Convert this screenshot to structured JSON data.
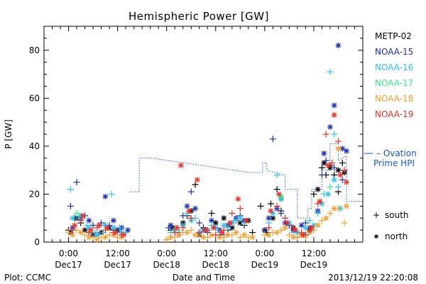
{
  "chart_data": {
    "type": "scatter",
    "title": "Hemispheric Power [GW]",
    "ylabel": "P [GW]",
    "xlabel": "Date and Time",
    "ylim": [
      0,
      90
    ],
    "yticks": [
      0,
      20,
      40,
      60,
      80
    ],
    "xlim_hours": [
      -6,
      72
    ],
    "x_ticks": [
      {
        "hour": 0,
        "time": "0:00",
        "date": "Dec17"
      },
      {
        "hour": 12,
        "time": "12:00",
        "date": "Dec17"
      },
      {
        "hour": 24,
        "time": "0:00",
        "date": "Dec18"
      },
      {
        "hour": 36,
        "time": "12:00",
        "date": "Dec18"
      },
      {
        "hour": 48,
        "time": "0:00",
        "date": "Dec19"
      },
      {
        "hour": 60,
        "time": "12:00",
        "date": "Dec19"
      }
    ],
    "plot_credit": "Plot: CCMC",
    "timestamp": "2013/12/19 22:20:08",
    "marker_legend": [
      {
        "marker": "+",
        "label": "south"
      },
      {
        "marker": "*",
        "label": "north"
      }
    ],
    "ovation_label_1": "– Ovation",
    "ovation_label_2": "Prime HPI",
    "ovation_color": "#1a56c4",
    "ovation_series": [
      [
        15,
        21
      ],
      [
        16,
        21
      ],
      [
        17.3,
        21
      ],
      [
        17.3,
        35
      ],
      [
        20.5,
        35
      ],
      [
        44.5,
        29
      ],
      [
        47.5,
        29
      ],
      [
        47.5,
        33
      ],
      [
        48.5,
        33
      ],
      [
        48.5,
        30
      ],
      [
        52.5,
        28
      ],
      [
        53,
        28
      ],
      [
        53,
        22
      ],
      [
        56,
        22
      ],
      [
        56,
        10
      ],
      [
        58.5,
        10
      ],
      [
        58.5,
        14
      ],
      [
        59.5,
        14
      ],
      [
        59.5,
        22
      ],
      [
        62,
        22
      ],
      [
        62,
        30
      ],
      [
        64,
        30
      ],
      [
        64,
        41
      ],
      [
        66,
        41
      ],
      [
        66,
        34
      ],
      [
        68,
        36
      ],
      [
        68,
        17
      ],
      [
        72,
        17
      ]
    ],
    "series": [
      {
        "name": "METP-02",
        "color": "#000000",
        "south": [
          [
            0,
            5
          ],
          [
            1.5,
            10
          ],
          [
            3,
            8
          ],
          [
            5,
            4
          ],
          [
            7,
            3
          ],
          [
            9,
            7
          ],
          [
            11,
            5
          ],
          [
            13,
            4
          ],
          [
            25,
            5
          ],
          [
            27,
            4
          ],
          [
            29,
            11
          ],
          [
            31,
            24
          ],
          [
            33,
            6
          ],
          [
            35,
            12
          ],
          [
            37,
            3
          ],
          [
            39,
            5
          ],
          [
            41,
            9
          ],
          [
            43,
            7
          ],
          [
            45,
            4
          ],
          [
            47,
            15
          ],
          [
            48.5,
            4
          ],
          [
            49.5,
            16
          ],
          [
            51,
            22
          ],
          [
            52,
            13
          ],
          [
            54,
            7
          ],
          [
            56,
            2
          ],
          [
            58,
            3
          ],
          [
            60,
            20
          ],
          [
            62,
            31
          ],
          [
            63,
            28
          ],
          [
            64,
            32
          ],
          [
            65,
            28
          ],
          [
            66,
            21
          ],
          [
            67,
            33
          ]
        ],
        "north": [
          [
            0.5,
            4
          ],
          [
            2,
            10
          ],
          [
            4,
            5
          ],
          [
            6,
            3
          ],
          [
            8,
            4
          ],
          [
            10,
            6
          ],
          [
            12,
            5
          ],
          [
            25.5,
            6
          ],
          [
            28,
            8
          ],
          [
            30,
            13
          ],
          [
            32,
            3
          ],
          [
            34,
            5
          ],
          [
            36,
            8
          ],
          [
            38,
            10
          ],
          [
            40,
            6
          ],
          [
            42,
            8
          ],
          [
            44,
            9
          ],
          [
            48,
            5
          ],
          [
            50,
            10
          ],
          [
            52,
            18
          ],
          [
            55,
            6
          ],
          [
            57,
            3
          ],
          [
            59,
            5
          ],
          [
            61,
            22
          ],
          [
            62.5,
            33
          ],
          [
            64,
            31
          ],
          [
            66,
            30
          ],
          [
            67.5,
            29
          ]
        ]
      },
      {
        "name": "NOAA-15",
        "color": "#1c2fb0",
        "south": [
          [
            0.5,
            15
          ],
          [
            2,
            25
          ],
          [
            4,
            11
          ],
          [
            6,
            7
          ],
          [
            8,
            8
          ],
          [
            10,
            7
          ],
          [
            12,
            5
          ],
          [
            14,
            4
          ],
          [
            24.5,
            6
          ],
          [
            26,
            4
          ],
          [
            28,
            11
          ],
          [
            30,
            21
          ],
          [
            32,
            8
          ],
          [
            34,
            4
          ],
          [
            36,
            6
          ],
          [
            38,
            3
          ],
          [
            40,
            8
          ],
          [
            42,
            11
          ],
          [
            48,
            5
          ],
          [
            50,
            43
          ],
          [
            52,
            12
          ],
          [
            54,
            7
          ],
          [
            56,
            4
          ],
          [
            58,
            8
          ],
          [
            60,
            5
          ],
          [
            62,
            28
          ],
          [
            63,
            34
          ],
          [
            65,
            31
          ],
          [
            67,
            26
          ]
        ],
        "north": [
          [
            1,
            6
          ],
          [
            3,
            10
          ],
          [
            5,
            9
          ],
          [
            7,
            3
          ],
          [
            9,
            19
          ],
          [
            11,
            9
          ],
          [
            13,
            6
          ],
          [
            14.5,
            5
          ],
          [
            25,
            7
          ],
          [
            27,
            3
          ],
          [
            29,
            15
          ],
          [
            31,
            14
          ],
          [
            33,
            5
          ],
          [
            35,
            9
          ],
          [
            37,
            5
          ],
          [
            39,
            7
          ],
          [
            41,
            10
          ],
          [
            43,
            9
          ],
          [
            49,
            10
          ],
          [
            51,
            14
          ],
          [
            53,
            8
          ],
          [
            55,
            5
          ],
          [
            57,
            7
          ],
          [
            59,
            6
          ],
          [
            61,
            13
          ],
          [
            62.5,
            37
          ],
          [
            64,
            48
          ],
          [
            65,
            57
          ],
          [
            66,
            82
          ],
          [
            67,
            39
          ],
          [
            68,
            38
          ]
        ]
      },
      {
        "name": "NOAA-16",
        "color": "#33c1ea",
        "south": [
          [
            0.5,
            22
          ],
          [
            2.5,
            10
          ],
          [
            4.5,
            7
          ],
          [
            6.5,
            4
          ],
          [
            8.5,
            4
          ],
          [
            10.5,
            20
          ],
          [
            12.5,
            6
          ],
          [
            14,
            4
          ],
          [
            25,
            4
          ],
          [
            27,
            5
          ],
          [
            29,
            12
          ],
          [
            31,
            10
          ],
          [
            33,
            5
          ],
          [
            35,
            7
          ],
          [
            37,
            4
          ],
          [
            39,
            6
          ],
          [
            41,
            9
          ],
          [
            43,
            8
          ],
          [
            49,
            8
          ],
          [
            51,
            28
          ],
          [
            53,
            10
          ],
          [
            55,
            4
          ],
          [
            57,
            3
          ],
          [
            59,
            9
          ],
          [
            61,
            12
          ],
          [
            62.5,
            20
          ],
          [
            64,
            71
          ],
          [
            65,
            45
          ],
          [
            66,
            23
          ]
        ],
        "north": [
          [
            1,
            10
          ],
          [
            3,
            11
          ],
          [
            5,
            6
          ],
          [
            7,
            3
          ],
          [
            9,
            7
          ],
          [
            11,
            6
          ],
          [
            13,
            4
          ],
          [
            26,
            5
          ],
          [
            28,
            7
          ],
          [
            30,
            9
          ],
          [
            32,
            4
          ],
          [
            34,
            5
          ],
          [
            36,
            6
          ],
          [
            38,
            7
          ],
          [
            40,
            8
          ],
          [
            42,
            10
          ],
          [
            50,
            12
          ],
          [
            52,
            18
          ],
          [
            54,
            8
          ],
          [
            56,
            4
          ],
          [
            58,
            6
          ],
          [
            60,
            7
          ],
          [
            62,
            16
          ],
          [
            63.5,
            20
          ],
          [
            65,
            26
          ],
          [
            66.5,
            14
          ]
        ]
      },
      {
        "name": "NOAA-17",
        "color": "#37e889",
        "south": [
          [
            2,
            12
          ],
          [
            30,
            10
          ],
          [
            64,
            23
          ]
        ],
        "north": [
          [
            52,
            19
          ]
        ]
      },
      {
        "name": "NOAA-18",
        "color": "#f2a033",
        "south": [
          [
            0,
            4
          ],
          [
            2,
            5
          ],
          [
            4,
            3
          ],
          [
            6,
            2
          ],
          [
            8,
            2
          ],
          [
            10,
            3
          ],
          [
            12,
            2
          ],
          [
            24,
            1
          ],
          [
            26,
            2
          ],
          [
            28,
            4
          ],
          [
            30,
            5
          ],
          [
            32,
            3
          ],
          [
            34,
            2
          ],
          [
            36,
            3
          ],
          [
            38,
            2
          ],
          [
            40,
            3
          ],
          [
            42,
            2
          ],
          [
            44,
            2
          ],
          [
            48,
            3
          ],
          [
            50,
            4
          ],
          [
            52,
            5
          ],
          [
            54,
            3
          ],
          [
            56,
            2
          ],
          [
            58,
            2
          ],
          [
            60,
            5
          ],
          [
            62,
            9
          ],
          [
            64,
            12
          ],
          [
            66,
            14
          ],
          [
            67.5,
            8
          ]
        ],
        "north": [
          [
            1,
            3
          ],
          [
            3,
            4
          ],
          [
            5,
            2
          ],
          [
            7,
            1
          ],
          [
            9,
            2
          ],
          [
            11,
            3
          ],
          [
            13,
            2
          ],
          [
            25,
            2
          ],
          [
            27,
            3
          ],
          [
            29,
            4
          ],
          [
            31,
            3
          ],
          [
            33,
            2
          ],
          [
            35,
            3
          ],
          [
            37,
            2
          ],
          [
            39,
            3
          ],
          [
            41,
            4
          ],
          [
            43,
            3
          ],
          [
            45,
            2
          ],
          [
            49,
            3
          ],
          [
            51,
            4
          ],
          [
            53,
            6
          ],
          [
            55,
            2
          ],
          [
            57,
            3
          ],
          [
            59,
            4
          ],
          [
            61,
            7
          ],
          [
            63,
            10
          ],
          [
            65,
            14
          ],
          [
            66,
            39
          ],
          [
            68,
            15
          ]
        ]
      },
      {
        "name": "NOAA-19",
        "color": "#e8302a",
        "south": [
          [
            1,
            5
          ],
          [
            3,
            9
          ],
          [
            5,
            4
          ],
          [
            7,
            6
          ],
          [
            9,
            5
          ],
          [
            11,
            4
          ],
          [
            13,
            3
          ],
          [
            26,
            4
          ],
          [
            28,
            6
          ],
          [
            30,
            10
          ],
          [
            32,
            4
          ],
          [
            34,
            5
          ],
          [
            36,
            3
          ],
          [
            38,
            5
          ],
          [
            40,
            12
          ],
          [
            42,
            14
          ],
          [
            49,
            6
          ],
          [
            51,
            15
          ],
          [
            53,
            10
          ],
          [
            55,
            6
          ],
          [
            57,
            4
          ],
          [
            59,
            5
          ],
          [
            61,
            16
          ],
          [
            63,
            45
          ],
          [
            64.5,
            33
          ],
          [
            66,
            42
          ],
          [
            67.5,
            30
          ]
        ],
        "north": [
          [
            1.5,
            7
          ],
          [
            3.5,
            11
          ],
          [
            5.5,
            5
          ],
          [
            7.5,
            7
          ],
          [
            9.5,
            6
          ],
          [
            11.5,
            4
          ],
          [
            13.5,
            3
          ],
          [
            26.5,
            6
          ],
          [
            27.5,
            32
          ],
          [
            29.5,
            13
          ],
          [
            31.5,
            26
          ],
          [
            33.5,
            5
          ],
          [
            35.5,
            6
          ],
          [
            37.5,
            4
          ],
          [
            39.5,
            8
          ],
          [
            41.5,
            18
          ],
          [
            43.5,
            9
          ],
          [
            49.5,
            13
          ],
          [
            51.5,
            20
          ],
          [
            53.5,
            8
          ],
          [
            55.5,
            5
          ],
          [
            57.5,
            3
          ],
          [
            59.5,
            6
          ],
          [
            61.5,
            17
          ],
          [
            63.5,
            32
          ],
          [
            65,
            53
          ],
          [
            66.5,
            28
          ],
          [
            68,
            25
          ]
        ]
      }
    ]
  }
}
